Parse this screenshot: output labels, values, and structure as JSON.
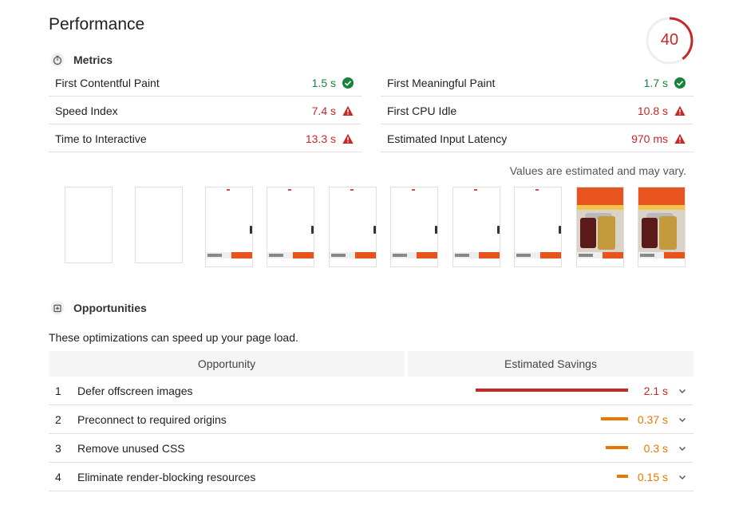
{
  "header": {
    "title": "Performance",
    "score": "40",
    "score_fraction": 0.4,
    "score_color": "#c62828"
  },
  "metrics_section": {
    "title": "Metrics",
    "icon": "stopwatch-icon",
    "left": [
      {
        "name": "First Contentful Paint",
        "value": "1.5 s",
        "status": "pass"
      },
      {
        "name": "Speed Index",
        "value": "7.4 s",
        "status": "fail"
      },
      {
        "name": "Time to Interactive",
        "value": "13.3 s",
        "status": "fail"
      }
    ],
    "right": [
      {
        "name": "First Meaningful Paint",
        "value": "1.7 s",
        "status": "pass"
      },
      {
        "name": "First CPU Idle",
        "value": "10.8 s",
        "status": "fail"
      },
      {
        "name": "Estimated Input Latency",
        "value": "970 ms",
        "status": "fail"
      }
    ],
    "note": "Values are estimated and may vary."
  },
  "filmstrip": {
    "frames": 10
  },
  "opportunities": {
    "title": "Opportunities",
    "icon": "opportunity-icon",
    "description": "These optimizations can speed up your page load.",
    "columns": [
      "Opportunity",
      "Estimated Savings"
    ],
    "rows": [
      {
        "num": "1",
        "name": "Defer offscreen images",
        "savings": "2.1 s",
        "severity": "red"
      },
      {
        "num": "2",
        "name": "Preconnect to required origins",
        "savings": "0.37 s",
        "severity": "orange"
      },
      {
        "num": "3",
        "name": "Remove unused CSS",
        "savings": "0.3 s",
        "severity": "orange"
      },
      {
        "num": "4",
        "name": "Eliminate render-blocking resources",
        "savings": "0.15 s",
        "severity": "orange"
      }
    ]
  },
  "colors": {
    "pass": "#178239",
    "fail": "#c62828",
    "average": "#e67700"
  }
}
